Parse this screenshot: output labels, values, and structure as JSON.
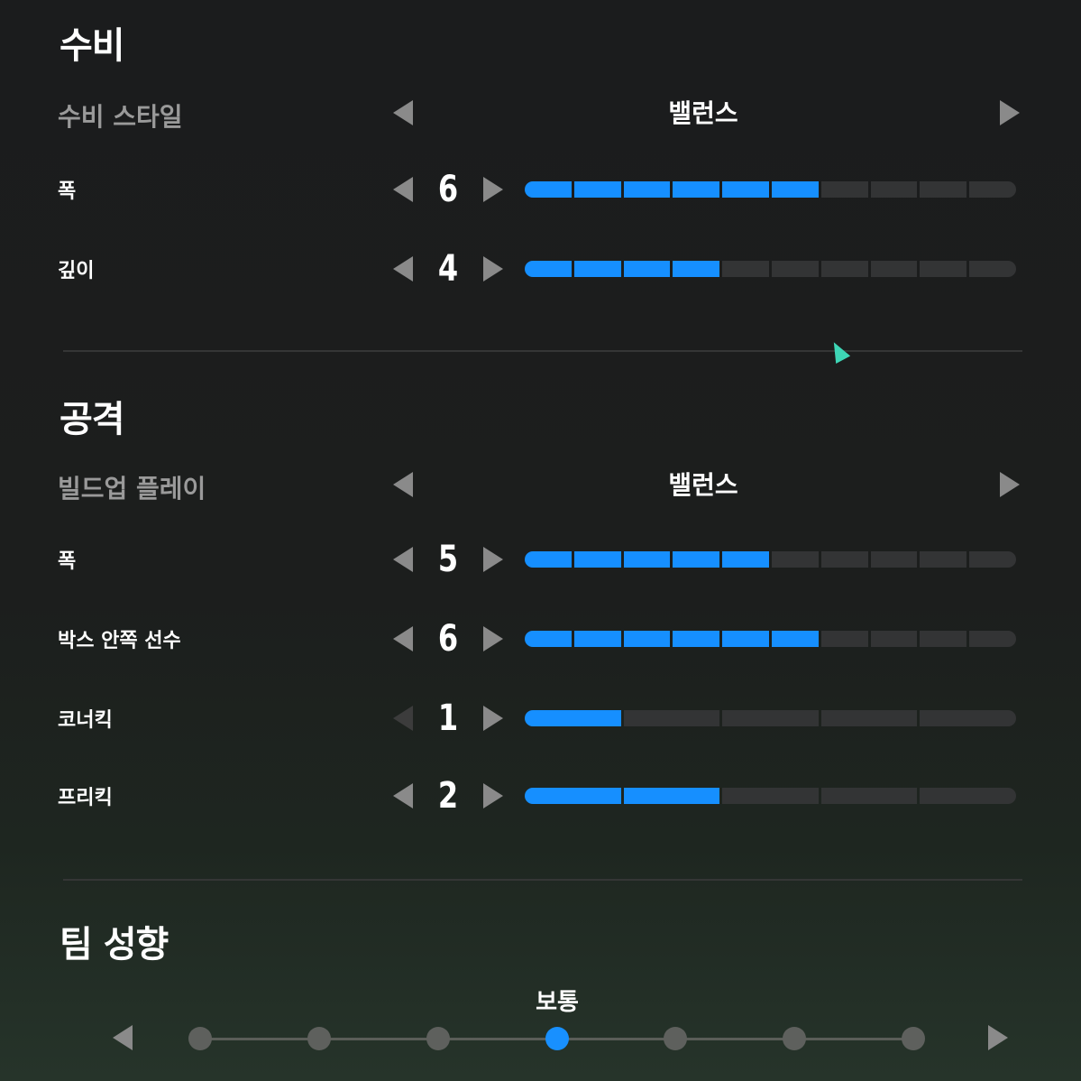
{
  "defense": {
    "title": "수비",
    "style_label": "수비 스타일",
    "style_value": "밸런스",
    "rows": [
      {
        "label": "폭",
        "value": 6,
        "max": 10
      },
      {
        "label": "깊이",
        "value": 4,
        "max": 10
      }
    ]
  },
  "attack": {
    "title": "공격",
    "style_label": "빌드업 플레이",
    "style_value": "밸런스",
    "rows": [
      {
        "label": "폭",
        "value": 5,
        "max": 10
      },
      {
        "label": "박스 안쪽 선수",
        "value": 6,
        "max": 10
      },
      {
        "label": "코너킥",
        "value": 1,
        "max": 5
      },
      {
        "label": "프리킥",
        "value": 2,
        "max": 5
      }
    ]
  },
  "team": {
    "title": "팀 성향",
    "value": "보통",
    "steps": 7,
    "selected_index": 3
  },
  "colors": {
    "accent": "#168fff",
    "cursor": "#3ed6b6"
  }
}
